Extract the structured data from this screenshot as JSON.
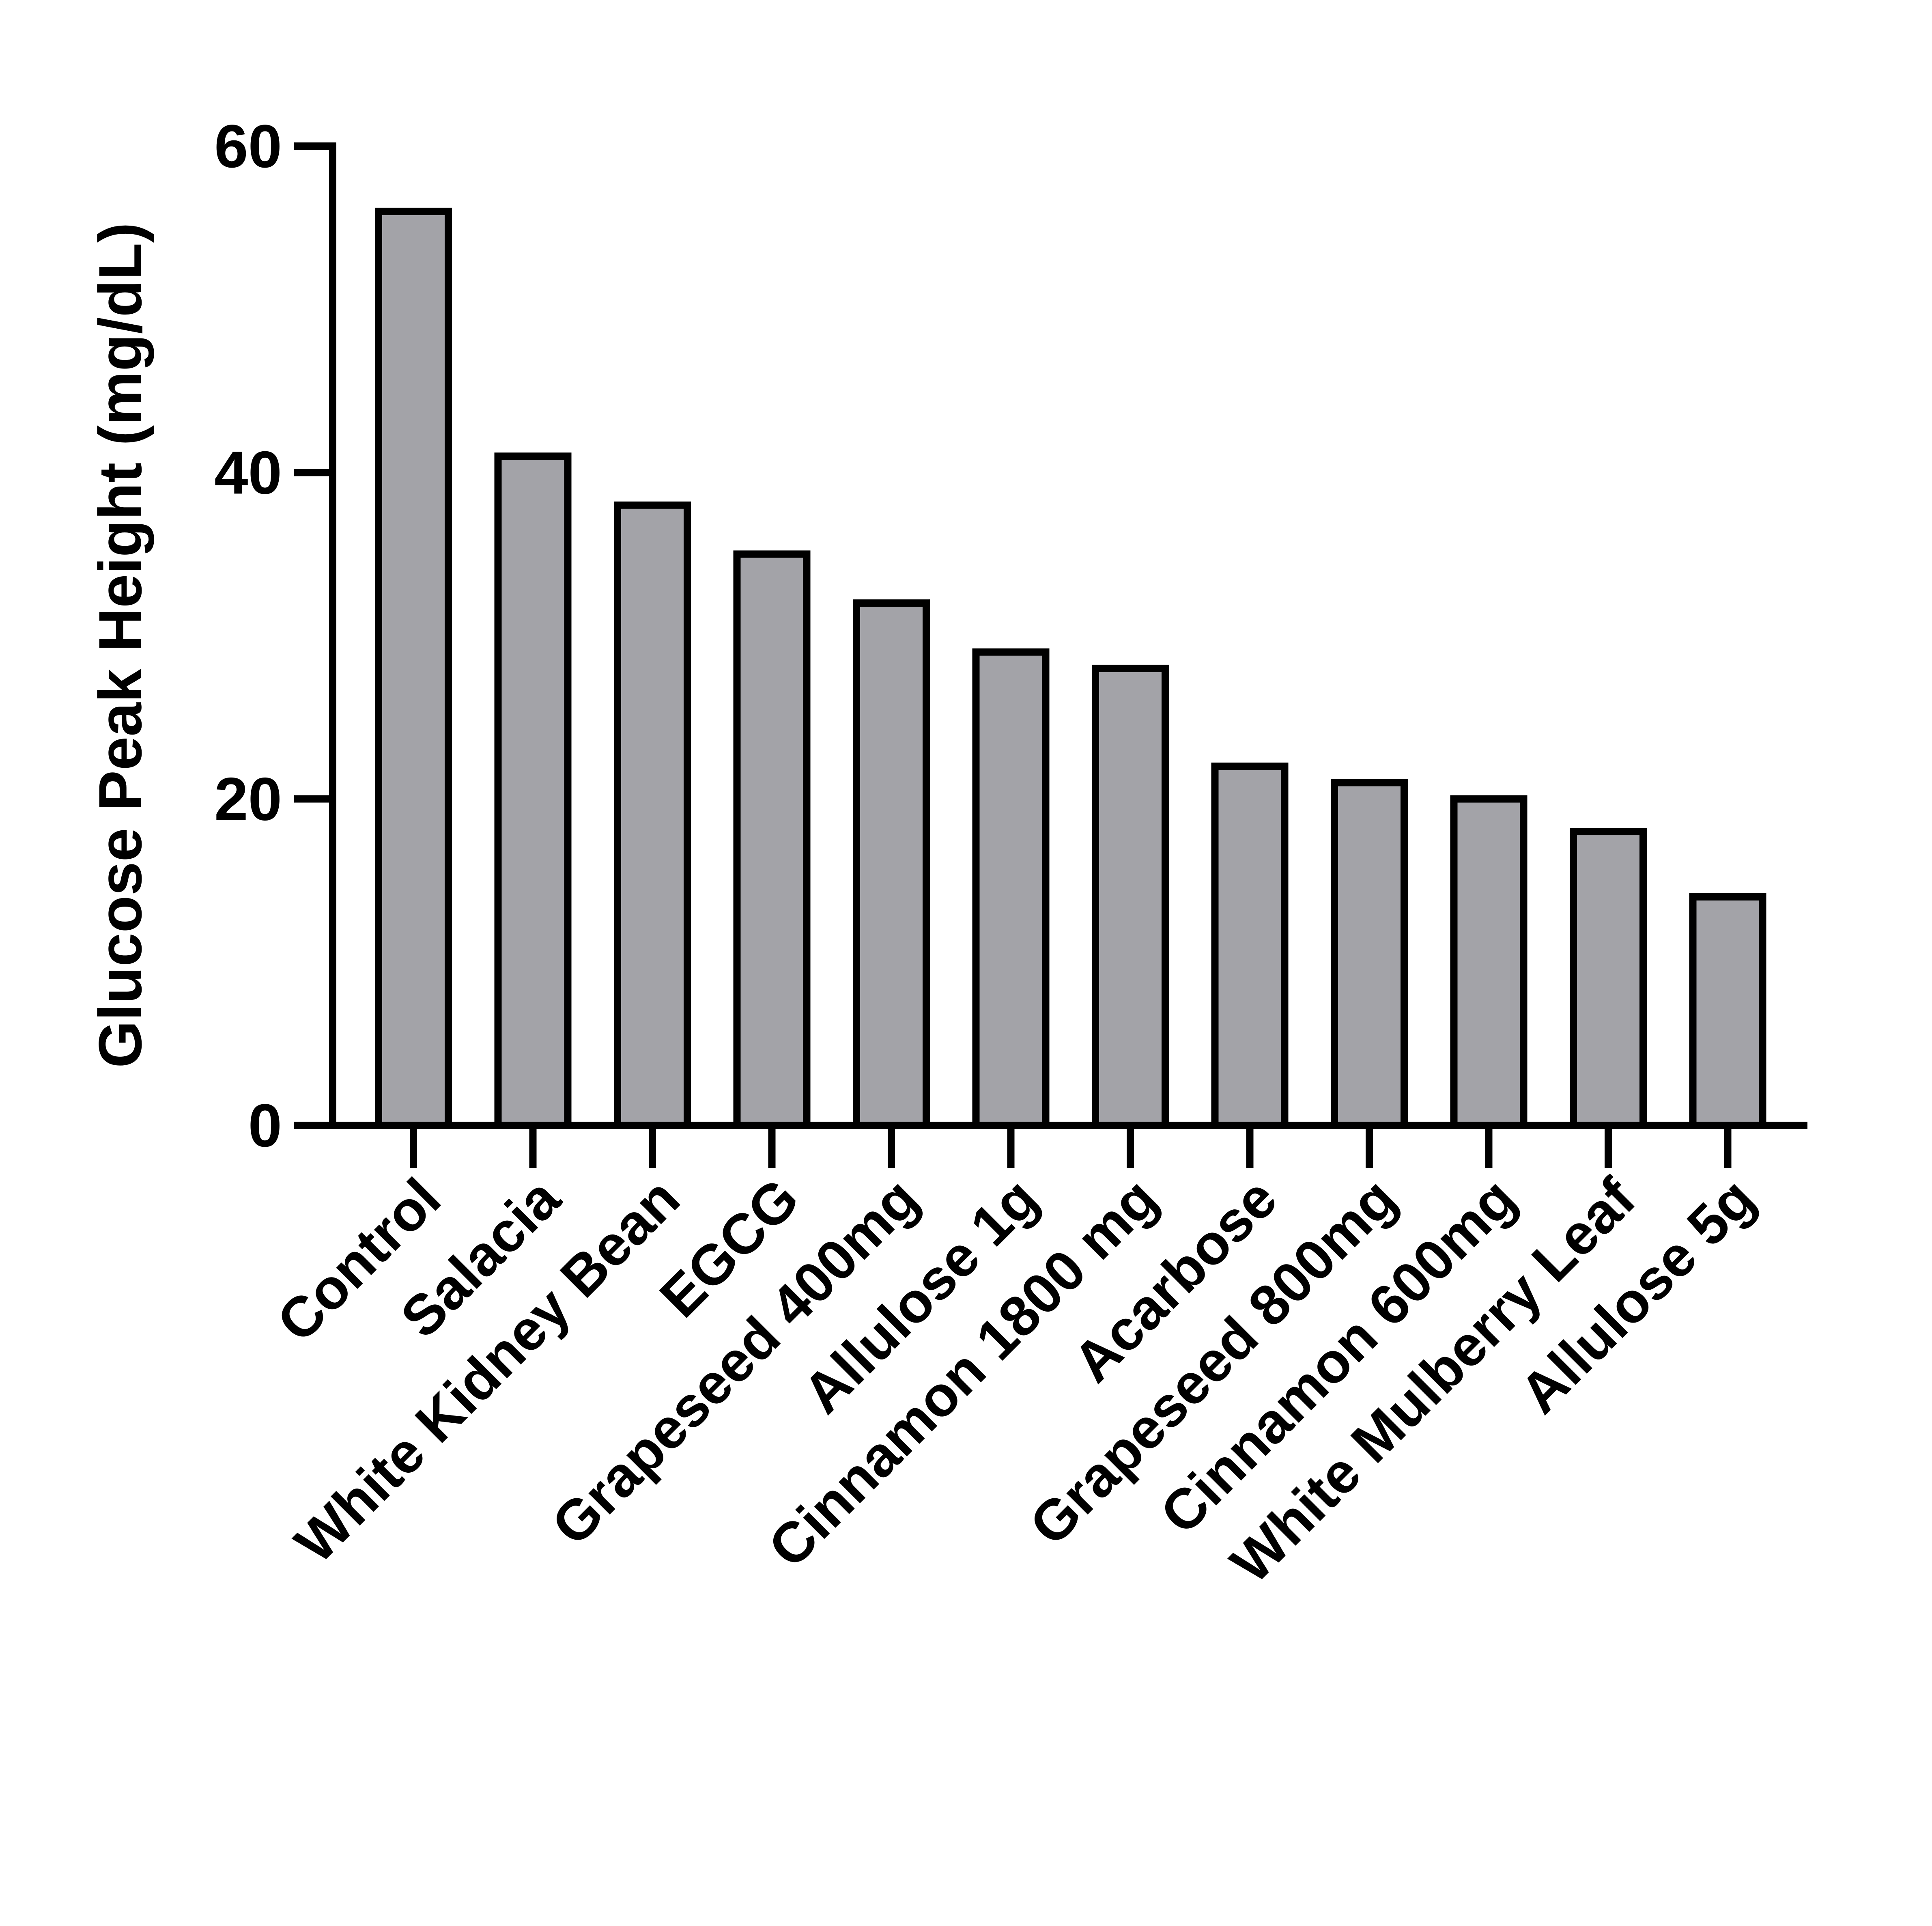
{
  "chart_data": {
    "type": "bar",
    "title": "",
    "xlabel": "",
    "ylabel": "Glucose Peak Height (mg/dL)",
    "ylim": [
      0,
      60
    ],
    "yticks": [
      "0",
      "20",
      "40",
      "60"
    ],
    "grid": false,
    "categories": [
      "Control",
      "Salacia",
      "White Kidney Bean",
      "EGCG",
      "Grapeseed 400mg",
      "Allulose 1g",
      "Cinnamon 1800 mg",
      "Acarbose",
      "Grapeseed 800mg",
      "Cinnamon 600mg",
      "White Mulberry Leaf",
      "Allulose 5g"
    ],
    "values": [
      56,
      41,
      38,
      35,
      32,
      29,
      28,
      22,
      21,
      20,
      18,
      14
    ],
    "bar_color": "#a3a3a8",
    "edge_color": "#000000"
  }
}
